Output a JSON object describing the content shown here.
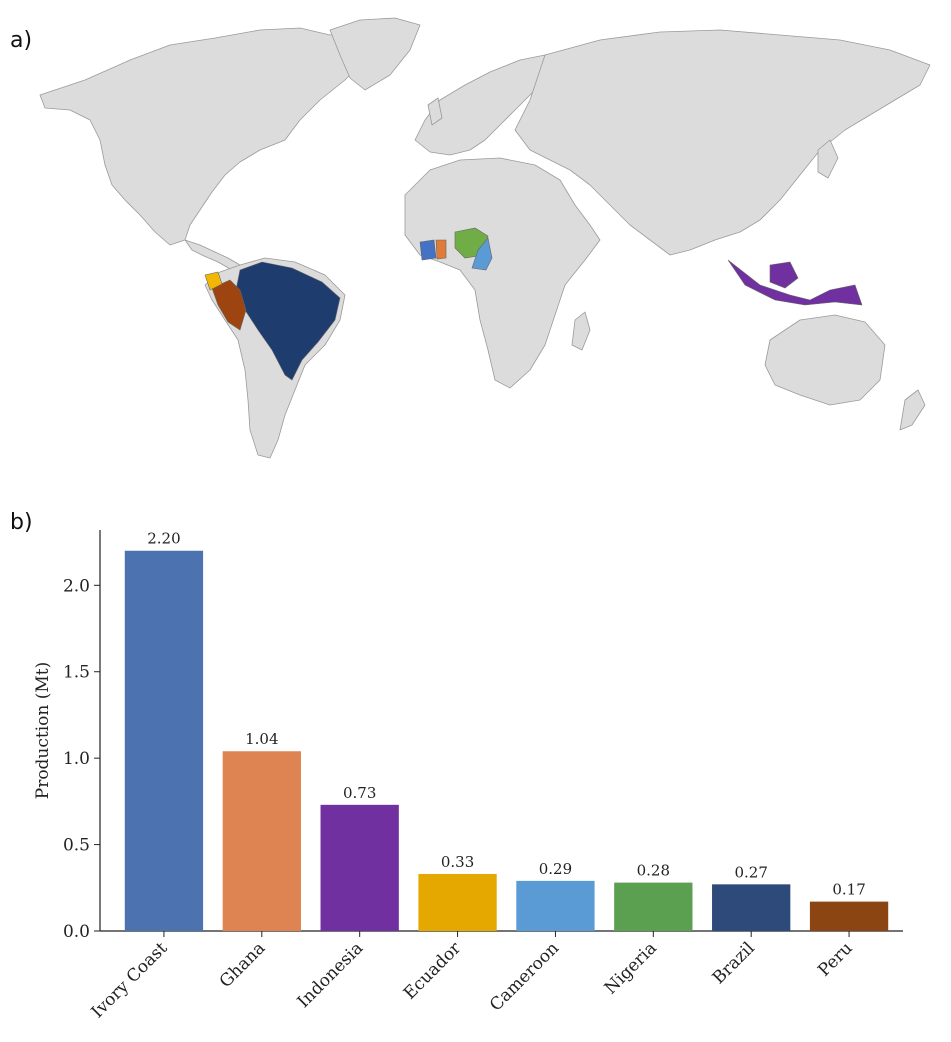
{
  "panels": {
    "a": "a)",
    "b": "b)"
  },
  "map": {
    "land_color": "#dcdcdc",
    "border_color": "#9a9a9a",
    "highlighted": [
      {
        "country": "Ivory Coast",
        "color": "#4472c4"
      },
      {
        "country": "Ghana",
        "color": "#e07b39"
      },
      {
        "country": "Indonesia",
        "color": "#7030a0"
      },
      {
        "country": "Ecuador",
        "color": "#f2b705"
      },
      {
        "country": "Cameroon",
        "color": "#5b9bd5"
      },
      {
        "country": "Nigeria",
        "color": "#70ad47"
      },
      {
        "country": "Brazil",
        "color": "#1f3c6e"
      },
      {
        "country": "Peru",
        "color": "#9e4410"
      }
    ]
  },
  "chart_data": {
    "type": "bar",
    "categories": [
      "Ivory Coast",
      "Ghana",
      "Indonesia",
      "Ecuador",
      "Cameroon",
      "Nigeria",
      "Brazil",
      "Peru"
    ],
    "values": [
      2.2,
      1.04,
      0.73,
      0.33,
      0.29,
      0.28,
      0.27,
      0.17
    ],
    "value_labels": [
      "2.20",
      "1.04",
      "0.73",
      "0.33",
      "0.29",
      "0.28",
      "0.27",
      "0.17"
    ],
    "colors": [
      "#4c72b0",
      "#dd8452",
      "#7030a0",
      "#e5a800",
      "#5b9bd5",
      "#5aa050",
      "#2e4a7a",
      "#8b4513"
    ],
    "ylabel": "Production (Mt)",
    "ylim": [
      0,
      2.32
    ],
    "yticks": [
      "0.0",
      "0.5",
      "1.0",
      "1.5",
      "2.0"
    ],
    "ytick_values": [
      0,
      0.5,
      1.0,
      1.5,
      2.0
    ],
    "grid": false
  }
}
